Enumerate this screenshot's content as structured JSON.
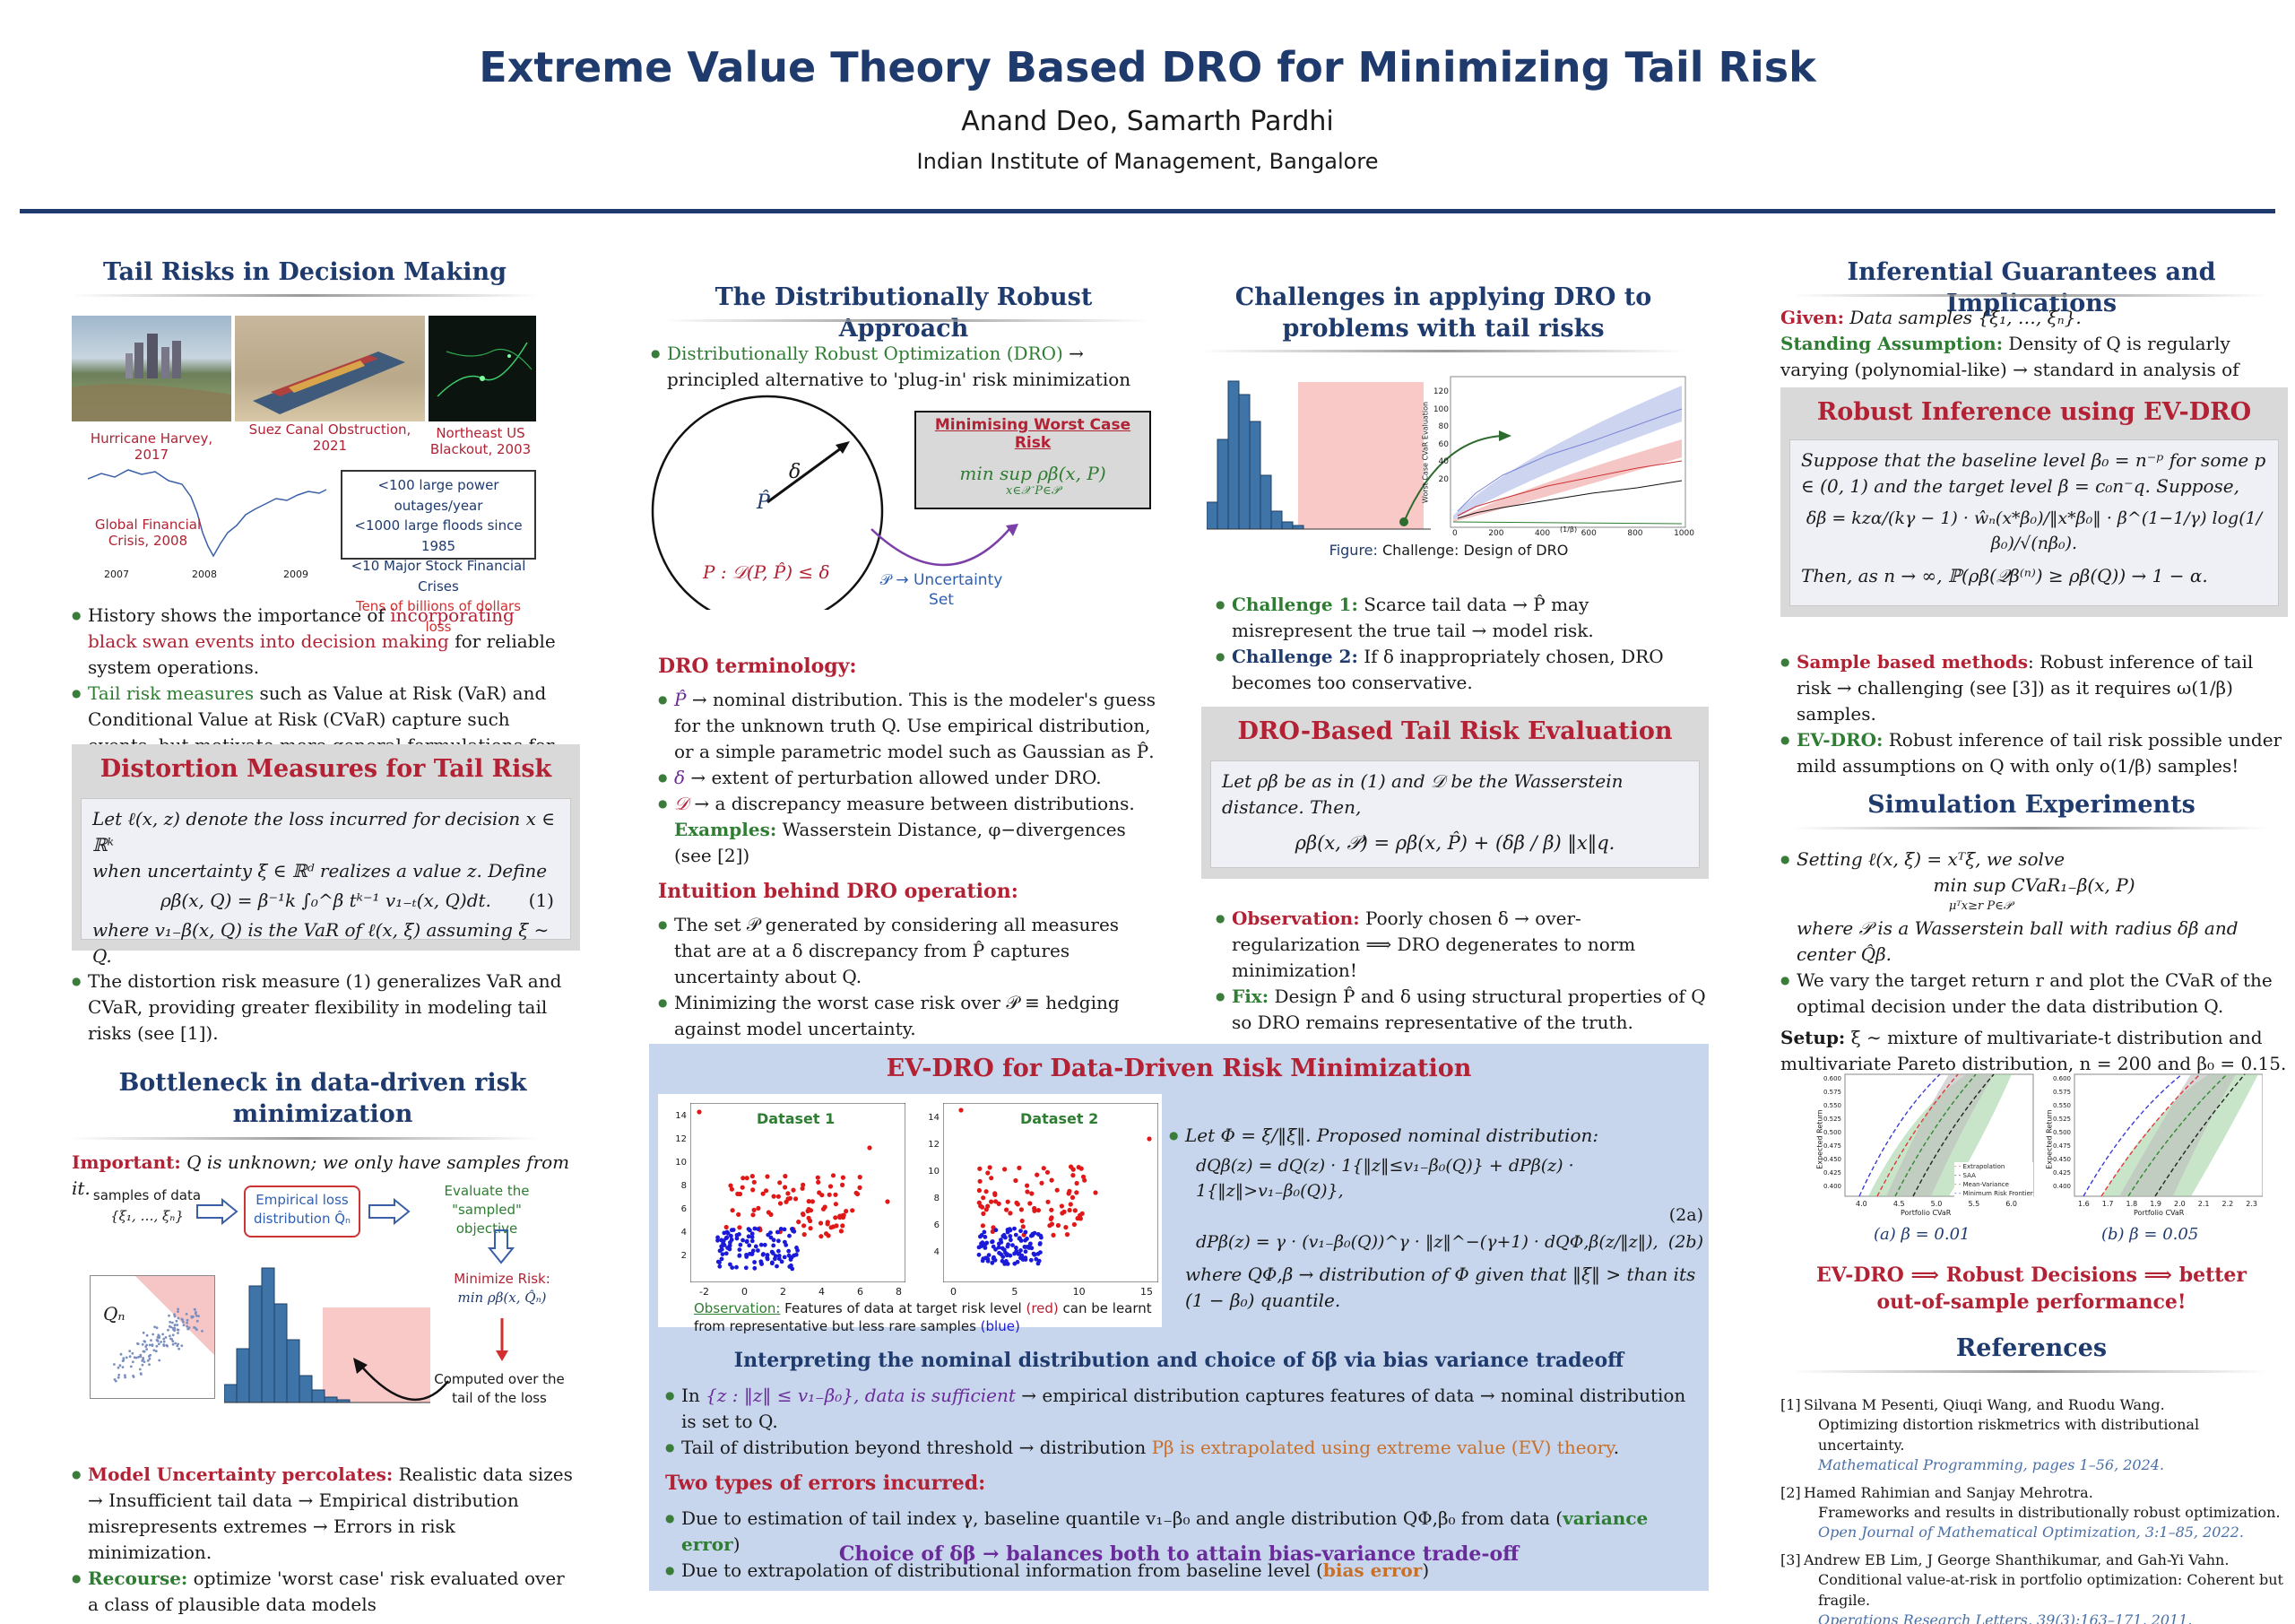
{
  "header": {
    "title": "Extreme Value Theory Based DRO for Minimizing Tail Risk",
    "authors": "Anand Deo, Samarth Pardhi",
    "institution": "Indian Institute of Management, Bangalore"
  },
  "col1": {
    "tail_title": "Tail Risks in Decision Making",
    "photos": [
      {
        "label": "Hurricane Harvey, 2017",
        "icon": "hurricane-photo"
      },
      {
        "label": "Suez Canal Obstruction, 2021",
        "icon": "ship-photo"
      },
      {
        "label": "Northeast US Blackout, 2003",
        "icon": "blackout-photo"
      }
    ],
    "crisis_label": "Global Financial Crisis, 2008",
    "crisis_years": [
      "2007",
      "2008",
      "2009"
    ],
    "stats": [
      "<100 large power outages/year",
      "<1000 large floods since 1985",
      "<10 Major Stock Financial Crises"
    ],
    "stats_highlight": "Tens of billions of dollars loss",
    "b1_pre": "History shows the importance of ",
    "b1_red": "incorporating black swan events into decision making",
    "b1_post": " for reliable system operations.",
    "b2_green": "Tail risk measures",
    "b2_rest": " such as Value at Risk (VaR) and Conditional Value at Risk (CVaR) capture such events, but motivate more general formulations for greater flexibility.",
    "distortion_title": "Distortion Measures for Tail Risk",
    "distortion_l1": "Let ℓ(x, z) denote the loss incurred for decision x ∈ ℝᵏ",
    "distortion_l2": "when uncertainty ξ ∈ ℝᵈ realizes a value z. Define",
    "distortion_eq": "ρβ(x, Q) = β⁻¹k ∫₀^β tᵏ⁻¹ v₁₋ₜ(x, Q)dt.",
    "distortion_eqno": "(1)",
    "distortion_l3": "where v₁₋β(x, Q) is the VaR of ℓ(x, ξ) assuming ξ ∼ Q.",
    "b3": "The distortion risk measure (1) generalizes VaR and CVaR, providing greater flexibility in modeling tail risks (see [1]).",
    "bottleneck_title": "Bottleneck in data-driven risk minimization",
    "important_label": "Important:",
    "important_text": " Q is unknown; we only have samples from it.",
    "flow_samples": "samples of data",
    "flow_samples2": "{ξ₁, …, ξₙ}",
    "flow_emp": "Empirical loss distribution Q̂ₙ",
    "flow_eval": "Evaluate the \"sampled\" objective",
    "flow_min": "Minimize Risk:",
    "flow_min2": "min ρβ(x, Q̂ₙ)",
    "flow_tail": "Computed over the tail of the loss",
    "qn_label": "Qₙ",
    "b4_red": "Model Uncertainty percolates:",
    "b4_rest": " Realistic data sizes → Insufficient tail data → Empirical distribution misrepresents extremes → Errors in risk minimization.",
    "b5_green": "Recourse:",
    "b5_rest": " optimize 'worst case' risk evaluated over a class of plausible data models"
  },
  "col2": {
    "dro_title": "The Distributionally Robust Approach",
    "dro_b1_green": "Distributionally Robust Optimization (DRO)",
    "dro_b1_rest": " → principled alternative to 'plug-in' risk minimization",
    "circle_phat": "P̂",
    "circle_delta": "δ",
    "circle_set": "P : 𝒟(P, P̂) ≤ δ",
    "worst_title": "Minimising Worst Case Risk",
    "worst_eq": "min sup ρβ(x, P)",
    "worst_sub": "x∈𝒳  P∈𝒫",
    "unc_set": "𝒫 → Uncertainty Set",
    "term_title": "DRO terminology:",
    "term_b1": " → nominal distribution. This is the modeler's guess for the unknown truth Q. Use empirical distribution, or a simple parametric model such as Gaussian as P̂.",
    "term_b1_sym": "P̂",
    "term_b2_sym": "δ",
    "term_b2": " → extent of perturbation allowed under DRO.",
    "term_b3_sym": "𝒟",
    "term_b3": " → a discrepancy measure between distributions.",
    "examples_label": "Examples:",
    "examples_text": " Wasserstein Distance, φ−divergences (see [2])",
    "intuition_title": "Intuition behind DRO operation:",
    "int_b1": "The set 𝒫 generated by considering all measures that are at a δ discrepancy from P̂ captures uncertainty about Q.",
    "int_b2": "Minimizing the worst case risk over 𝒫 ≡ hedging against model uncertainty."
  },
  "col3": {
    "chal_title": "Challenges in applying DRO to problems with tail risks",
    "fig_caption_pre": "Figure:",
    "fig_caption": " Challenge: Design of DRO",
    "fig_ylabel": "Worst Case CVaR Evaluation",
    "fig_xlabel": "(1/β)",
    "fig_yticks": [
      "120",
      "100",
      "80",
      "60",
      "40",
      "20"
    ],
    "fig_xticks": [
      "0",
      "200",
      "400",
      "600",
      "800",
      "1000"
    ],
    "c1_label": "Challenge 1:",
    "c1_text": " Scarce tail data → P̂ may misrepresent the true tail → model risk.",
    "c2_label": "Challenge 2:",
    "c2_text": " If δ inappropriately chosen, DRO becomes too conservative.",
    "eval_title": "DRO-Based Tail Risk Evaluation",
    "eval_l1": "Let ρβ be as in (1) and 𝒟 be the Wasserstein distance. Then,",
    "eval_eq": "ρβ(x, 𝒫) = ρβ(x, P̂) + (δβ / β) ‖x‖q.",
    "obs_label": "Observation:",
    "obs_text": " Poorly chosen δ → over-regularization ⟹ DRO degenerates to norm minimization!",
    "fix_label": "Fix:",
    "fix_text": " Design P̂ and δ using structural properties of Q so DRO remains representative of the truth."
  },
  "evdro": {
    "title": "EV-DRO for Data-Driven Risk Minimization",
    "ds1": "Dataset 1",
    "ds2": "Dataset 2",
    "ds1_yticks": [
      "14",
      "12",
      "10",
      "8",
      "6",
      "4",
      "2"
    ],
    "ds1_xticks": [
      "-2",
      "0",
      "2",
      "4",
      "6",
      "8"
    ],
    "ds2_yticks": [
      "14",
      "12",
      "10",
      "8",
      "6",
      "4"
    ],
    "ds2_xticks": [
      "0",
      "5",
      "10",
      "15"
    ],
    "obs_pre": "Observation:",
    "obs_a": " Features of data at target risk level ",
    "obs_red": "(red)",
    "obs_b": " can be learnt from representative but less rare samples ",
    "obs_blue": "(blue)",
    "let_phi": "Let Φ = ξ/‖ξ‖. Proposed nominal distribution:",
    "eq2a": "dQβ(z) = dQ(z) · 1{‖z‖≤v₁₋β₀(Q)} + dPβ(z) · 1{‖z‖>v₁₋β₀(Q)},",
    "eq2a_no": "(2a)",
    "eq2b": "dPβ(z) = γ · (v₁₋β₀(Q))^γ · ‖z‖^−(γ+1) · dQΦ,β(z/‖z‖),",
    "eq2b_no": "(2b)",
    "where_text": "where QΦ,β → distribution of Φ given that ‖ξ‖ > than its (1 − β₀) quantile.",
    "interp_title": "Interpreting the nominal distribution and choice of δβ via bias variance tradeoff",
    "ib1_pre": "In ",
    "ib1_purple": "{z : ‖z‖ ≤ v₁₋β₀}, data is sufficient",
    "ib1_rest": " → empirical distribution captures features of data → nominal distribution is set to Q.",
    "ib2_pre": "Tail of distribution beyond threshold → distribution ",
    "ib2_orange": "Pβ is extrapolated using extreme value (EV) theory",
    "ib2_post": ".",
    "errors_title": "Two types of errors incurred:",
    "eb1": "Due to estimation of tail index γ, baseline quantile v₁₋β₀ and angle distribution QΦ,β₀ from data (",
    "eb1_green": "variance error",
    "eb1_post": ")",
    "eb2": "Due to extrapolation of distributional information from baseline level (",
    "eb2_orange": "bias error",
    "eb2_post": ")",
    "choice": "Choice of δβ → balances both to attain bias-variance trade-off"
  },
  "col4": {
    "inf_title": "Inferential Guarantees and Implications",
    "given_label": "Given:",
    "given_text": " Data samples {ξ₁, …, ξₙ}.",
    "standing_label": "Standing Assumption:",
    "standing_text": " Density of Q is regularly varying (polynomial-like) → standard in analysis of extremes.",
    "robust_title": "Robust Inference using EV-DRO",
    "robust_l1": "Suppose that the baseline level β₀ = n⁻ᵖ for some p ∈ (0, 1) and the target level β = c₀n⁻q. Suppose,",
    "robust_eq": "δβ = kzα/(kγ − 1) · ŵₙ(x*β₀)/‖x*β₀‖ · β^(1−1/γ) log(1/β₀)/√(nβ₀).",
    "robust_then": "Then, as n → ∞, ℙ(ρβ(𝒬β⁽ⁿ⁾) ≥ ρβ(Q)) → 1 − α.",
    "sb_red": "Sample based methods",
    "sb_text": ": Robust inference of tail risk → challenging (see [3]) as it requires ω(1/β) samples.",
    "ev_green": "EV-DRO:",
    "ev_text": " Robust inference of tail risk possible under mild assumptions on Q with only o(1/β) samples!",
    "sim_title": "Simulation Experiments",
    "sim_b1": "Setting ℓ(x, ξ) = xᵀξ, we solve",
    "sim_eq": "min  sup CVaR₁₋β(x, P)",
    "sim_eq_sub": "μᵀx≥r  P∈𝒫",
    "sim_b1b": "where 𝒫 is a Wasserstein ball with radius δβ and center Q̂β.",
    "sim_b2": "We vary the target return r and plot the CVaR of the optimal decision under the data distribution Q.",
    "setup_label": "Setup:",
    "setup_text": " ξ ∼ mixture of multivariate-t distribution and multivariate Pareto distribution, n = 200 and β₀ = 0.15.",
    "plot_a": "(a) β = 0.01",
    "plot_b": "(b) β = 0.05",
    "plot_ylabel": "Expected Return",
    "plot_xlabel": "Portfolio CVaR",
    "plot_a_yticks": [
      "0.600",
      "0.575",
      "0.550",
      "0.525",
      "0.500",
      "0.475",
      "0.450",
      "0.425",
      "0.400"
    ],
    "plot_a_xticks": [
      "4.0",
      "4.5",
      "5.0",
      "5.5",
      "6.0"
    ],
    "plot_b_yticks": [
      "0.600",
      "0.575",
      "0.550",
      "0.525",
      "0.500",
      "0.475",
      "0.450",
      "0.425",
      "0.400"
    ],
    "plot_b_xticks": [
      "1.6",
      "1.7",
      "1.8",
      "1.9",
      "2.0",
      "2.1",
      "2.2",
      "2.3"
    ],
    "legend": [
      "Extrapolation",
      "SAA",
      "Mean-Variance",
      "Minimum Risk Frontier"
    ],
    "conclusion": "EV-DRO ⟹ Robust Decisions ⟹ better out-of-sample performance!",
    "ref_title": "References",
    "refs": [
      {
        "num": "[1]",
        "authors": "Silvana M Pesenti, Qiuqi Wang, and Ruodu Wang.",
        "title": "Optimizing distortion riskmetrics with distributional uncertainty.",
        "journal": "Mathematical Programming",
        "rest": ", pages 1–56, 2024."
      },
      {
        "num": "[2]",
        "authors": "Hamed Rahimian and Sanjay Mehrotra.",
        "title": "Frameworks and results in distributionally robust optimization.",
        "journal": "Open Journal of Mathematical Optimization",
        "rest": ", 3:1–85, 2022."
      },
      {
        "num": "[3]",
        "authors": "Andrew EB Lim, J George Shanthikumar, and Gah-Yi Vahn.",
        "title": "Conditional value-at-risk in portfolio optimization: Coherent but fragile.",
        "journal": "Operations Research Letters",
        "rest": ", 39(3):163–171, 2011."
      }
    ]
  }
}
